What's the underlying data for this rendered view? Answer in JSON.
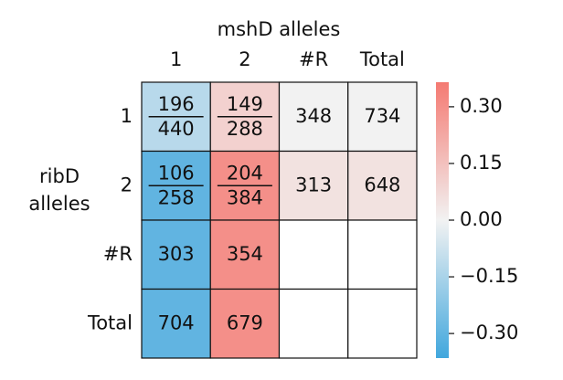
{
  "chart_data": {
    "type": "heatmap",
    "x_label": "mshD alleles",
    "y_label": "ribD alleles",
    "columns": [
      "1",
      "2",
      "#R",
      "Total"
    ],
    "rows": [
      "1",
      "2",
      "#R",
      "Total"
    ],
    "values": [
      [
        -0.12,
        0.1,
        0.0,
        0.0
      ],
      [
        -0.3,
        0.3,
        0.05,
        0.05
      ],
      [
        -0.3,
        0.3,
        null,
        null
      ],
      [
        -0.3,
        0.3,
        null,
        null
      ]
    ],
    "cell_labels": [
      [
        {
          "num": 196,
          "den": 440
        },
        {
          "num": 149,
          "den": 288
        },
        348,
        734
      ],
      [
        {
          "num": 106,
          "den": 258
        },
        {
          "num": 204,
          "den": 384
        },
        313,
        648
      ],
      [
        303,
        354,
        null,
        null
      ],
      [
        704,
        679,
        null,
        null
      ]
    ],
    "colormap": [
      "#41a7dd",
      "#f2f2f2",
      "#f47a72"
    ],
    "clim": [
      -0.365,
      0.365
    ],
    "cticks": [
      {
        "value": 0.3,
        "label": "0.30"
      },
      {
        "value": 0.15,
        "label": "0.15"
      },
      {
        "value": 0,
        "label": "0.00"
      },
      {
        "value": -0.15,
        "label": "−0.15"
      },
      {
        "value": -0.3,
        "label": "−0.30"
      }
    ]
  }
}
